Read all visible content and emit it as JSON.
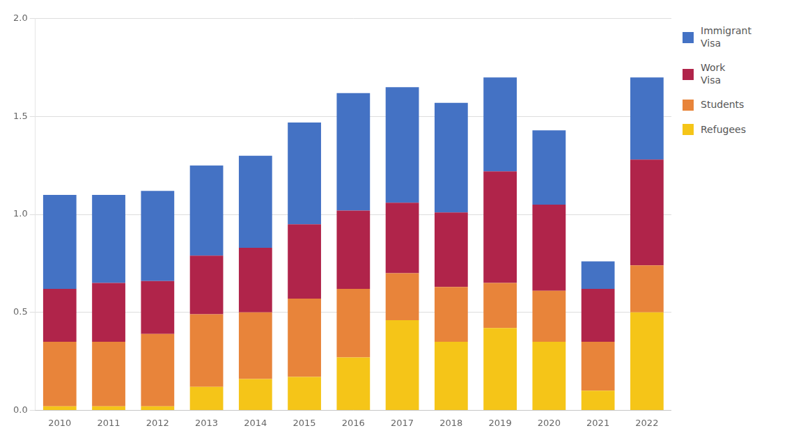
{
  "chart_data": {
    "type": "bar",
    "stacked": true,
    "grid": true,
    "legend": "right",
    "categories": [
      "2010",
      "2011",
      "2012",
      "2013",
      "2014",
      "2015",
      "2016",
      "2017",
      "2018",
      "2019",
      "2020",
      "2021",
      "2022"
    ],
    "series": [
      {
        "name": "Refugees",
        "color": "#F5C518",
        "values": [
          0.02,
          0.02,
          0.02,
          0.12,
          0.16,
          0.17,
          0.27,
          0.46,
          0.35,
          0.42,
          0.35,
          0.1,
          0.5
        ]
      },
      {
        "name": "Students",
        "color": "#E8843A",
        "values": [
          0.33,
          0.33,
          0.37,
          0.37,
          0.34,
          0.4,
          0.35,
          0.24,
          0.28,
          0.23,
          0.26,
          0.25,
          0.24
        ]
      },
      {
        "name": "Work\nVisa",
        "color": "#B0244A",
        "values": [
          0.27,
          0.3,
          0.27,
          0.3,
          0.33,
          0.38,
          0.4,
          0.36,
          0.38,
          0.57,
          0.44,
          0.27,
          0.54
        ]
      },
      {
        "name": "Immigrant\nVisa",
        "color": "#4472C4",
        "values": [
          0.48,
          0.45,
          0.46,
          0.46,
          0.47,
          0.52,
          0.6,
          0.59,
          0.56,
          0.48,
          0.38,
          0.14,
          0.42
        ]
      }
    ],
    "ylim": [
      0,
      2.0
    ],
    "yticks": [
      {
        "value": 0,
        "label": "0.0"
      },
      0.5,
      {
        "value": 1,
        "label": "1.0"
      },
      1.5,
      {
        "value": 2,
        "label": "2.0"
      }
    ]
  }
}
